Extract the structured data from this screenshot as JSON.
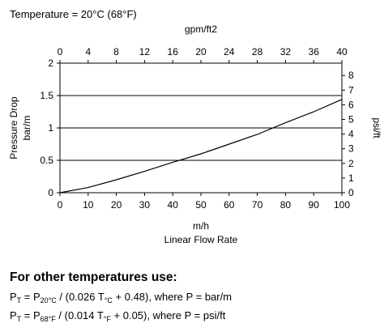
{
  "chart_data": {
    "type": "line",
    "title": "Temperature = 20°C (68°F)",
    "xlabel": "m/h",
    "xlabel2": "Linear Flow Rate",
    "x_top_label": "gpm/ft2",
    "ylabel": "Pressure Drop",
    "ylabel2": "bar/m",
    "y_right_label": "psi/ft",
    "xlim": [
      0,
      100
    ],
    "ylim": [
      0,
      2
    ],
    "x_top_lim": [
      0,
      40
    ],
    "y_right_lim": [
      0,
      8.84
    ],
    "x_ticks": [
      "0",
      "10",
      "20",
      "30",
      "40",
      "50",
      "60",
      "70",
      "80",
      "90",
      "100"
    ],
    "y_ticks": [
      "0",
      "0.5",
      "1",
      "1.5",
      "2"
    ],
    "x_top_ticks": [
      "0",
      "4",
      "8",
      "12",
      "16",
      "20",
      "24",
      "28",
      "32",
      "36",
      "40"
    ],
    "y_right_ticks": [
      "0",
      "1",
      "2",
      "3",
      "4",
      "5",
      "6",
      "7",
      "8"
    ],
    "grid": "horizontal",
    "series": [
      {
        "x": [
          0,
          10,
          20,
          30,
          40,
          50,
          60,
          70,
          80,
          90,
          100
        ],
        "y": [
          0,
          0.08,
          0.2,
          0.33,
          0.47,
          0.6,
          0.75,
          0.9,
          1.08,
          1.25,
          1.44
        ]
      }
    ]
  },
  "equations": {
    "heading": "For other temperatures use:",
    "eq1": {
      "p": "P",
      "p_sub": "T",
      "eq": " = P",
      "ref_sub": "20°C",
      "mid": " / (0.026 T",
      "t_sub": "°C",
      "tail": " + 0.48), where P = bar/m"
    },
    "eq2": {
      "p": "P",
      "p_sub": "T",
      "eq": " = P",
      "ref_sub": "68°F",
      "mid": " / (0.014 T",
      "t_sub": "°F",
      "tail": " + 0.05), where P = psi/ft"
    }
  }
}
